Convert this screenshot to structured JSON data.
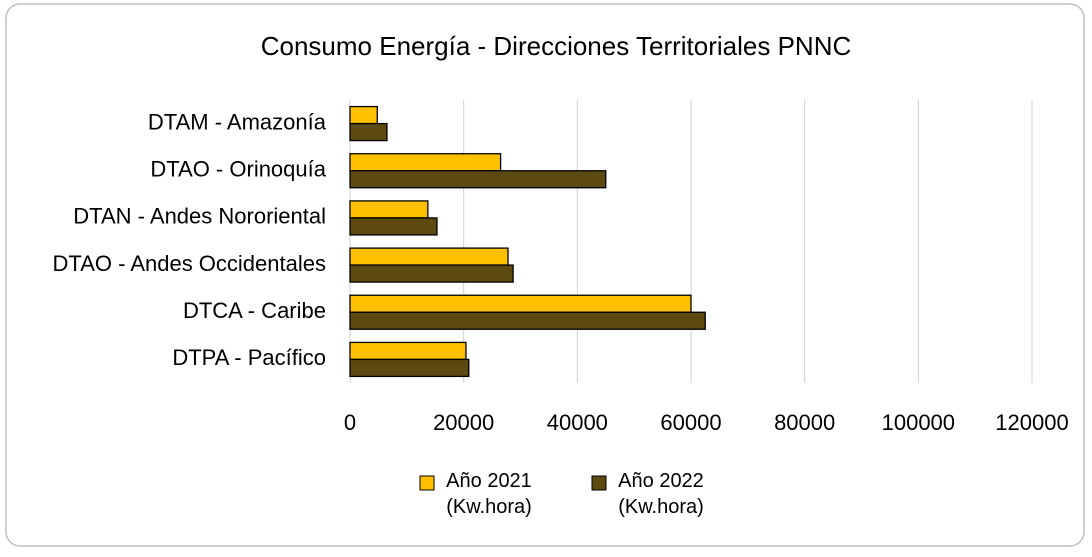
{
  "chart_data": {
    "type": "hbar",
    "title": "Consumo Energía - Direcciones Territoriales PNNC",
    "categories": [
      "DTAM - Amazonía",
      "DTAO - Orinoquía",
      "DTAN - Andes Nororiental",
      "DTAO - Andes Occidentales",
      "DTCA - Caribe",
      "DTPA - Pacífico"
    ],
    "series": [
      {
        "name": "Año 2021 (Kw.hora)",
        "color": "#ffc000",
        "values": [
          4800,
          26500,
          13700,
          27800,
          60000,
          20400
        ]
      },
      {
        "name": "Año 2022 (Kw.hora)",
        "color": "#5c4a10",
        "values": [
          6500,
          45000,
          15300,
          28700,
          62500,
          20900
        ]
      }
    ],
    "xlim": [
      0,
      120000
    ],
    "xticks": [
      0,
      20000,
      40000,
      60000,
      80000,
      100000,
      120000
    ],
    "grid": true,
    "legend": "bottom"
  }
}
